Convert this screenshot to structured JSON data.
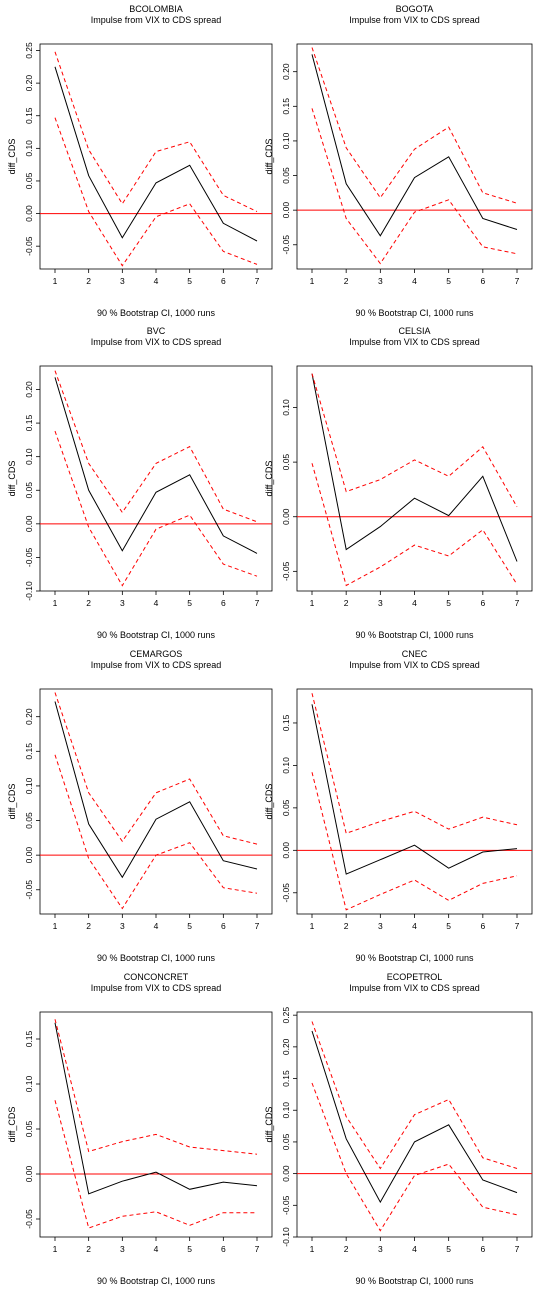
{
  "common": {
    "subtitle": "Impulse from VIX to CDS spread",
    "ylabel": "diff_CDS",
    "footer": "90 % Bootstrap CI,  1000 runs",
    "line_color": "#000000",
    "ci_color": "#ff0000",
    "zero_color": "#ff0000"
  },
  "chart_data": [
    {
      "type": "line",
      "title": "BCOLOMBIA",
      "x": [
        1,
        2,
        3,
        4,
        5,
        6,
        7
      ],
      "ylim": [
        -0.085,
        0.26
      ],
      "yticks": [
        -0.05,
        0.0,
        0.05,
        0.1,
        0.15,
        0.2,
        0.25
      ],
      "ytick_labels": [
        "-0.05",
        "0.00",
        "0.05",
        "0.10",
        "0.15",
        "0.20",
        "0.25"
      ],
      "series": [
        {
          "role": "irf",
          "values": [
            0.225,
            0.058,
            -0.037,
            0.047,
            0.074,
            -0.015,
            -0.042
          ]
        },
        {
          "role": "upper",
          "values": [
            0.248,
            0.098,
            0.015,
            0.095,
            0.11,
            0.028,
            0.003
          ]
        },
        {
          "role": "lower",
          "values": [
            0.147,
            0.003,
            -0.08,
            -0.005,
            0.015,
            -0.058,
            -0.078
          ]
        }
      ]
    },
    {
      "type": "line",
      "title": "BOGOTA",
      "x": [
        1,
        2,
        3,
        4,
        5,
        6,
        7
      ],
      "ylim": [
        -0.085,
        0.24
      ],
      "yticks": [
        -0.05,
        0.0,
        0.05,
        0.1,
        0.15,
        0.2
      ],
      "ytick_labels": [
        "-0.05",
        "0.00",
        "0.05",
        "0.10",
        "0.15",
        "0.20"
      ],
      "series": [
        {
          "role": "irf",
          "values": [
            0.225,
            0.038,
            -0.037,
            0.047,
            0.077,
            -0.012,
            -0.028
          ]
        },
        {
          "role": "upper",
          "values": [
            0.235,
            0.09,
            0.018,
            0.088,
            0.12,
            0.025,
            0.01
          ]
        },
        {
          "role": "lower",
          "values": [
            0.147,
            -0.012,
            -0.077,
            -0.003,
            0.015,
            -0.053,
            -0.063
          ]
        }
      ]
    },
    {
      "type": "line",
      "title": "BVC",
      "x": [
        1,
        2,
        3,
        4,
        5,
        6,
        7
      ],
      "ylim": [
        -0.1,
        0.235
      ],
      "yticks": [
        -0.1,
        -0.05,
        0.0,
        0.05,
        0.1,
        0.15,
        0.2
      ],
      "ytick_labels": [
        "-0.10",
        "-0.05",
        "0.00",
        "0.05",
        "0.10",
        "0.15",
        "0.20"
      ],
      "series": [
        {
          "role": "irf",
          "values": [
            0.218,
            0.05,
            -0.04,
            0.047,
            0.073,
            -0.018,
            -0.044
          ]
        },
        {
          "role": "upper",
          "values": [
            0.228,
            0.09,
            0.017,
            0.09,
            0.115,
            0.022,
            0.003
          ]
        },
        {
          "role": "lower",
          "values": [
            0.138,
            -0.005,
            -0.092,
            -0.008,
            0.013,
            -0.06,
            -0.078
          ]
        }
      ]
    },
    {
      "type": "line",
      "title": "CELSIA",
      "x": [
        1,
        2,
        3,
        4,
        5,
        6,
        7
      ],
      "ylim": [
        -0.068,
        0.138
      ],
      "yticks": [
        -0.05,
        0.0,
        0.05,
        0.1
      ],
      "ytick_labels": [
        "-0.05",
        "0.00",
        "0.05",
        "0.10"
      ],
      "series": [
        {
          "role": "irf",
          "values": [
            0.131,
            -0.03,
            -0.009,
            0.017,
            0.001,
            0.037,
            -0.041
          ]
        },
        {
          "role": "upper",
          "values": [
            0.131,
            0.023,
            0.034,
            0.052,
            0.037,
            0.064,
            0.009
          ]
        },
        {
          "role": "lower",
          "values": [
            0.049,
            -0.063,
            -0.046,
            -0.026,
            -0.036,
            -0.012,
            -0.062
          ]
        }
      ]
    },
    {
      "type": "line",
      "title": "CEMARGOS",
      "x": [
        1,
        2,
        3,
        4,
        5,
        6,
        7
      ],
      "ylim": [
        -0.085,
        0.24
      ],
      "yticks": [
        -0.05,
        0.0,
        0.05,
        0.1,
        0.15,
        0.2
      ],
      "ytick_labels": [
        "-0.05",
        "0.00",
        "0.05",
        "0.10",
        "0.15",
        "0.20"
      ],
      "series": [
        {
          "role": "irf",
          "values": [
            0.222,
            0.045,
            -0.032,
            0.052,
            0.077,
            -0.008,
            -0.02
          ]
        },
        {
          "role": "upper",
          "values": [
            0.235,
            0.09,
            0.02,
            0.09,
            0.11,
            0.028,
            0.016
          ]
        },
        {
          "role": "lower",
          "values": [
            0.145,
            -0.005,
            -0.077,
            0.0,
            0.018,
            -0.047,
            -0.055
          ]
        }
      ]
    },
    {
      "type": "line",
      "title": "CNEC",
      "x": [
        1,
        2,
        3,
        4,
        5,
        6,
        7
      ],
      "ylim": [
        -0.075,
        0.19
      ],
      "yticks": [
        -0.05,
        0.0,
        0.05,
        0.1,
        0.15
      ],
      "ytick_labels": [
        "-0.05",
        "0.00",
        "0.05",
        "0.10",
        "0.15"
      ],
      "series": [
        {
          "role": "irf",
          "values": [
            0.172,
            -0.028,
            -0.011,
            0.006,
            -0.021,
            -0.002,
            0.002
          ]
        },
        {
          "role": "upper",
          "values": [
            0.185,
            0.02,
            0.034,
            0.046,
            0.025,
            0.039,
            0.03
          ]
        },
        {
          "role": "lower",
          "values": [
            0.092,
            -0.07,
            -0.052,
            -0.035,
            -0.059,
            -0.039,
            -0.03
          ]
        }
      ]
    },
    {
      "type": "line",
      "title": "CONCONCRET",
      "x": [
        1,
        2,
        3,
        4,
        5,
        6,
        7
      ],
      "ylim": [
        -0.07,
        0.18
      ],
      "yticks": [
        -0.05,
        0.0,
        0.05,
        0.1,
        0.15
      ],
      "ytick_labels": [
        "-0.05",
        "0.00",
        "0.05",
        "0.10",
        "0.15"
      ],
      "series": [
        {
          "role": "irf",
          "values": [
            0.168,
            -0.022,
            -0.008,
            0.002,
            -0.017,
            -0.009,
            -0.013
          ]
        },
        {
          "role": "upper",
          "values": [
            0.172,
            0.025,
            0.036,
            0.044,
            0.03,
            0.026,
            0.022
          ]
        },
        {
          "role": "lower",
          "values": [
            0.082,
            -0.06,
            -0.047,
            -0.042,
            -0.057,
            -0.043,
            -0.043
          ]
        }
      ]
    },
    {
      "type": "line",
      "title": "ECOPETROL",
      "x": [
        1,
        2,
        3,
        4,
        5,
        6,
        7
      ],
      "ylim": [
        -0.1,
        0.255
      ],
      "yticks": [
        -0.1,
        -0.05,
        0.0,
        0.05,
        0.1,
        0.15,
        0.2,
        0.25
      ],
      "ytick_labels": [
        "-0.10",
        "-0.05",
        "0.00",
        "0.05",
        "0.10",
        "0.15",
        "0.20",
        "0.25"
      ],
      "series": [
        {
          "role": "irf",
          "values": [
            0.225,
            0.055,
            -0.045,
            0.05,
            0.077,
            -0.01,
            -0.03
          ]
        },
        {
          "role": "upper",
          "values": [
            0.24,
            0.09,
            0.008,
            0.093,
            0.117,
            0.025,
            0.008
          ]
        },
        {
          "role": "lower",
          "values": [
            0.143,
            0.0,
            -0.09,
            -0.003,
            0.015,
            -0.053,
            -0.065
          ]
        }
      ]
    }
  ]
}
